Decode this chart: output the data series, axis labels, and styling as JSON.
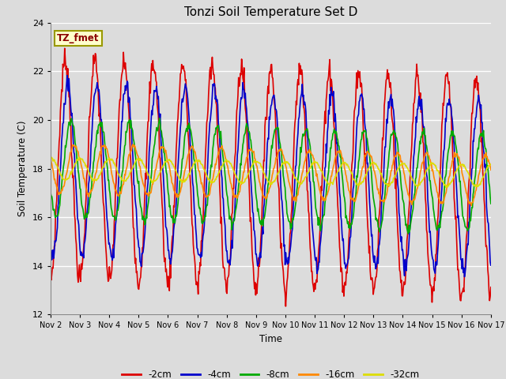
{
  "title": "Tonzi Soil Temperature Set D",
  "xlabel": "Time",
  "ylabel": "Soil Temperature (C)",
  "ylim": [
    12,
    24
  ],
  "yticks": [
    12,
    14,
    16,
    18,
    20,
    22,
    24
  ],
  "annotation_text": "TZ_fmet",
  "annotation_color": "#8B0000",
  "annotation_bg": "#FFFFCC",
  "annotation_border": "#999900",
  "series_colors": {
    "-2cm": "#DD0000",
    "-4cm": "#0000CC",
    "-8cm": "#00AA00",
    "-16cm": "#FF8800",
    "-32cm": "#DDDD00"
  },
  "bg_color": "#DCDCDC",
  "plot_bg_color": "#DCDCDC",
  "grid_color": "#FFFFFF",
  "n_days": 15,
  "start_day": 2,
  "points_per_day": 48,
  "base_temp": 18.0,
  "amplitudes": {
    "-2cm": 4.5,
    "-4cm": 3.5,
    "-8cm": 2.0,
    "-16cm": 1.0,
    "-32cm": 0.45
  },
  "phase_shifts_rad": {
    "-2cm": 0.0,
    "-4cm": 0.5,
    "-8cm": 1.2,
    "-16cm": 2.0,
    "-32cm": 3.2
  },
  "trend_slopes": {
    "-2cm": -0.05,
    "-4cm": -0.05,
    "-8cm": -0.04,
    "-16cm": -0.03,
    "-32cm": -0.02
  },
  "legend_labels": [
    "-2cm",
    "-4cm",
    "-8cm",
    "-16cm",
    "-32cm"
  ]
}
